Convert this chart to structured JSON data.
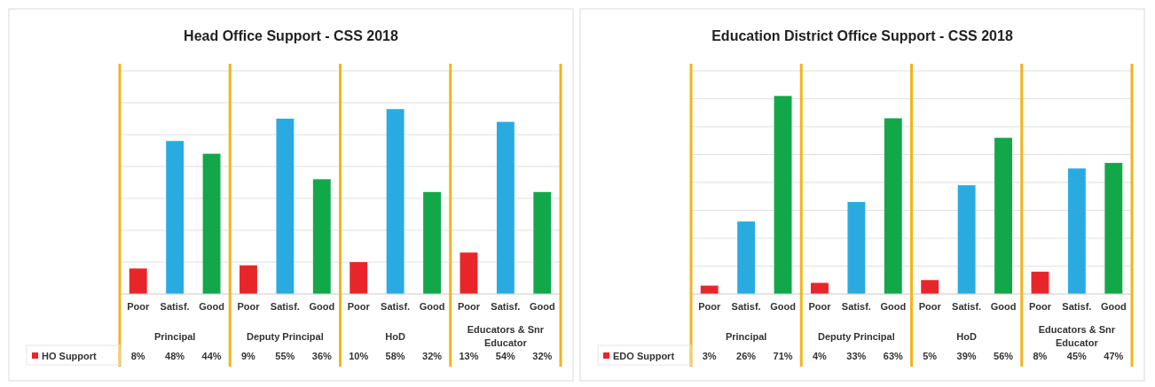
{
  "chart_data": [
    {
      "type": "bar",
      "title": "Head Office Support - CSS 2018",
      "categories": [
        "Poor",
        "Satisf.",
        "Good",
        "Poor",
        "Satisf.",
        "Good",
        "Poor",
        "Satisf.",
        "Good",
        "Poor",
        "Satisf.",
        "Good"
      ],
      "series": [
        {
          "name": "HO Support",
          "color": "#e8262a",
          "colors": [
            "#e8262a",
            "#29abe2",
            "#12a84a",
            "#e8262a",
            "#29abe2",
            "#12a84a",
            "#e8262a",
            "#29abe2",
            "#12a84a",
            "#e8262a",
            "#29abe2",
            "#12a84a"
          ],
          "values": [
            8,
            48,
            44,
            9,
            55,
            36,
            10,
            58,
            32,
            13,
            54,
            32
          ],
          "value_labels": [
            "8%",
            "48%",
            "44%",
            "9%",
            "55%",
            "36%",
            "10%",
            "58%",
            "32%",
            "13%",
            "54%",
            "32%"
          ]
        }
      ],
      "annotations": [
        "Principal",
        "Deputy Principal",
        "HoD",
        "Educators & Snr Educator"
      ],
      "ylim": [
        0,
        70
      ],
      "yticks": [
        {
          "value": 0,
          "label": null
        },
        {
          "value": 10,
          "label": null
        },
        {
          "value": 20,
          "label": null
        },
        {
          "value": 30,
          "label": null
        },
        {
          "value": 40,
          "label": null
        },
        {
          "value": 50,
          "label": null
        },
        {
          "value": 60,
          "label": null
        },
        {
          "value": 70,
          "label": null
        }
      ],
      "grid": "y",
      "tick_labels": "x",
      "legend": "bottom"
    },
    {
      "type": "bar",
      "title": "Education District Office Support - CSS 2018",
      "categories": [
        "Poor",
        "Satisf.",
        "Good",
        "Poor",
        "Satisf.",
        "Good",
        "Poor",
        "Satisf.",
        "Good",
        "Poor",
        "Satisf.",
        "Good"
      ],
      "series": [
        {
          "name": "EDO Support",
          "color": "#e8262a",
          "colors": [
            "#e8262a",
            "#29abe2",
            "#12a84a",
            "#e8262a",
            "#29abe2",
            "#12a84a",
            "#e8262a",
            "#29abe2",
            "#12a84a",
            "#e8262a",
            "#29abe2",
            "#12a84a"
          ],
          "values": [
            3,
            26,
            71,
            4,
            33,
            63,
            5,
            39,
            56,
            8,
            45,
            47
          ],
          "value_labels": [
            "3%",
            "26%",
            "71%",
            "4%",
            "33%",
            "63%",
            "5%",
            "39%",
            "56%",
            "8%",
            "45%",
            "47%"
          ]
        }
      ],
      "annotations": [
        "Principal",
        "Deputy Principal",
        "HoD",
        "Educators & Snr Educator"
      ],
      "ylim": [
        0,
        80
      ],
      "yticks": [
        {
          "value": 0,
          "label": null
        },
        {
          "value": 10,
          "label": null
        },
        {
          "value": 20,
          "label": null
        },
        {
          "value": 30,
          "label": null
        },
        {
          "value": 40,
          "label": null
        },
        {
          "value": 50,
          "label": null
        },
        {
          "value": 60,
          "label": null
        },
        {
          "value": 70,
          "label": null
        },
        {
          "value": 80,
          "label": null
        }
      ],
      "grid": "y",
      "tick_labels": "x",
      "legend": "bottom"
    }
  ]
}
